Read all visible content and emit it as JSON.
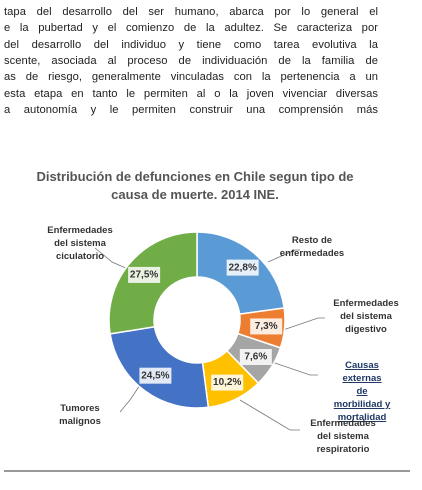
{
  "paragraph": [
    "tapa del desarrollo del ser humano, abarca por lo general el",
    "e la pubertad y el comienzo de la adultez. Se caracteriza por",
    "del desarrollo del individuo y tiene como tarea evolutiva la",
    "scente, asociada al proceso de individuación de la familia de",
    "as de riesgo, generalmente vinculadas con la pertenencia a un",
    "esta etapa en tanto le permiten al o la joven vivenciar diversas",
    "a autonomía y le permiten construir una comprensión más"
  ],
  "chart_data": {
    "type": "pie",
    "donut": true,
    "title": "Distribución de defunciones en Chile segun tipo de causa de muerte. 2014 INE.",
    "categories": [
      "Resto de\nenfermedades",
      "Enfermedades\ndel sistema\ndigestivo",
      "Causas externas\nde morbilidad y\nmortalidad",
      "Enfermedades\ndel sistema\nrespiratorio",
      "Tumores\nmalignos",
      "Enfermedades\ndel sistema\nciculatorio"
    ],
    "values": [
      22.8,
      7.3,
      7.6,
      10.2,
      24.5,
      27.5
    ],
    "value_labels": [
      "22,8%",
      "7,3%",
      "7,6%",
      "10,2%",
      "24,5%",
      "27,5%"
    ],
    "colors": [
      "#5b9bd5",
      "#ed7d31",
      "#a5a5a5",
      "#ffc000",
      "#4472c4",
      "#70ad47"
    ]
  }
}
